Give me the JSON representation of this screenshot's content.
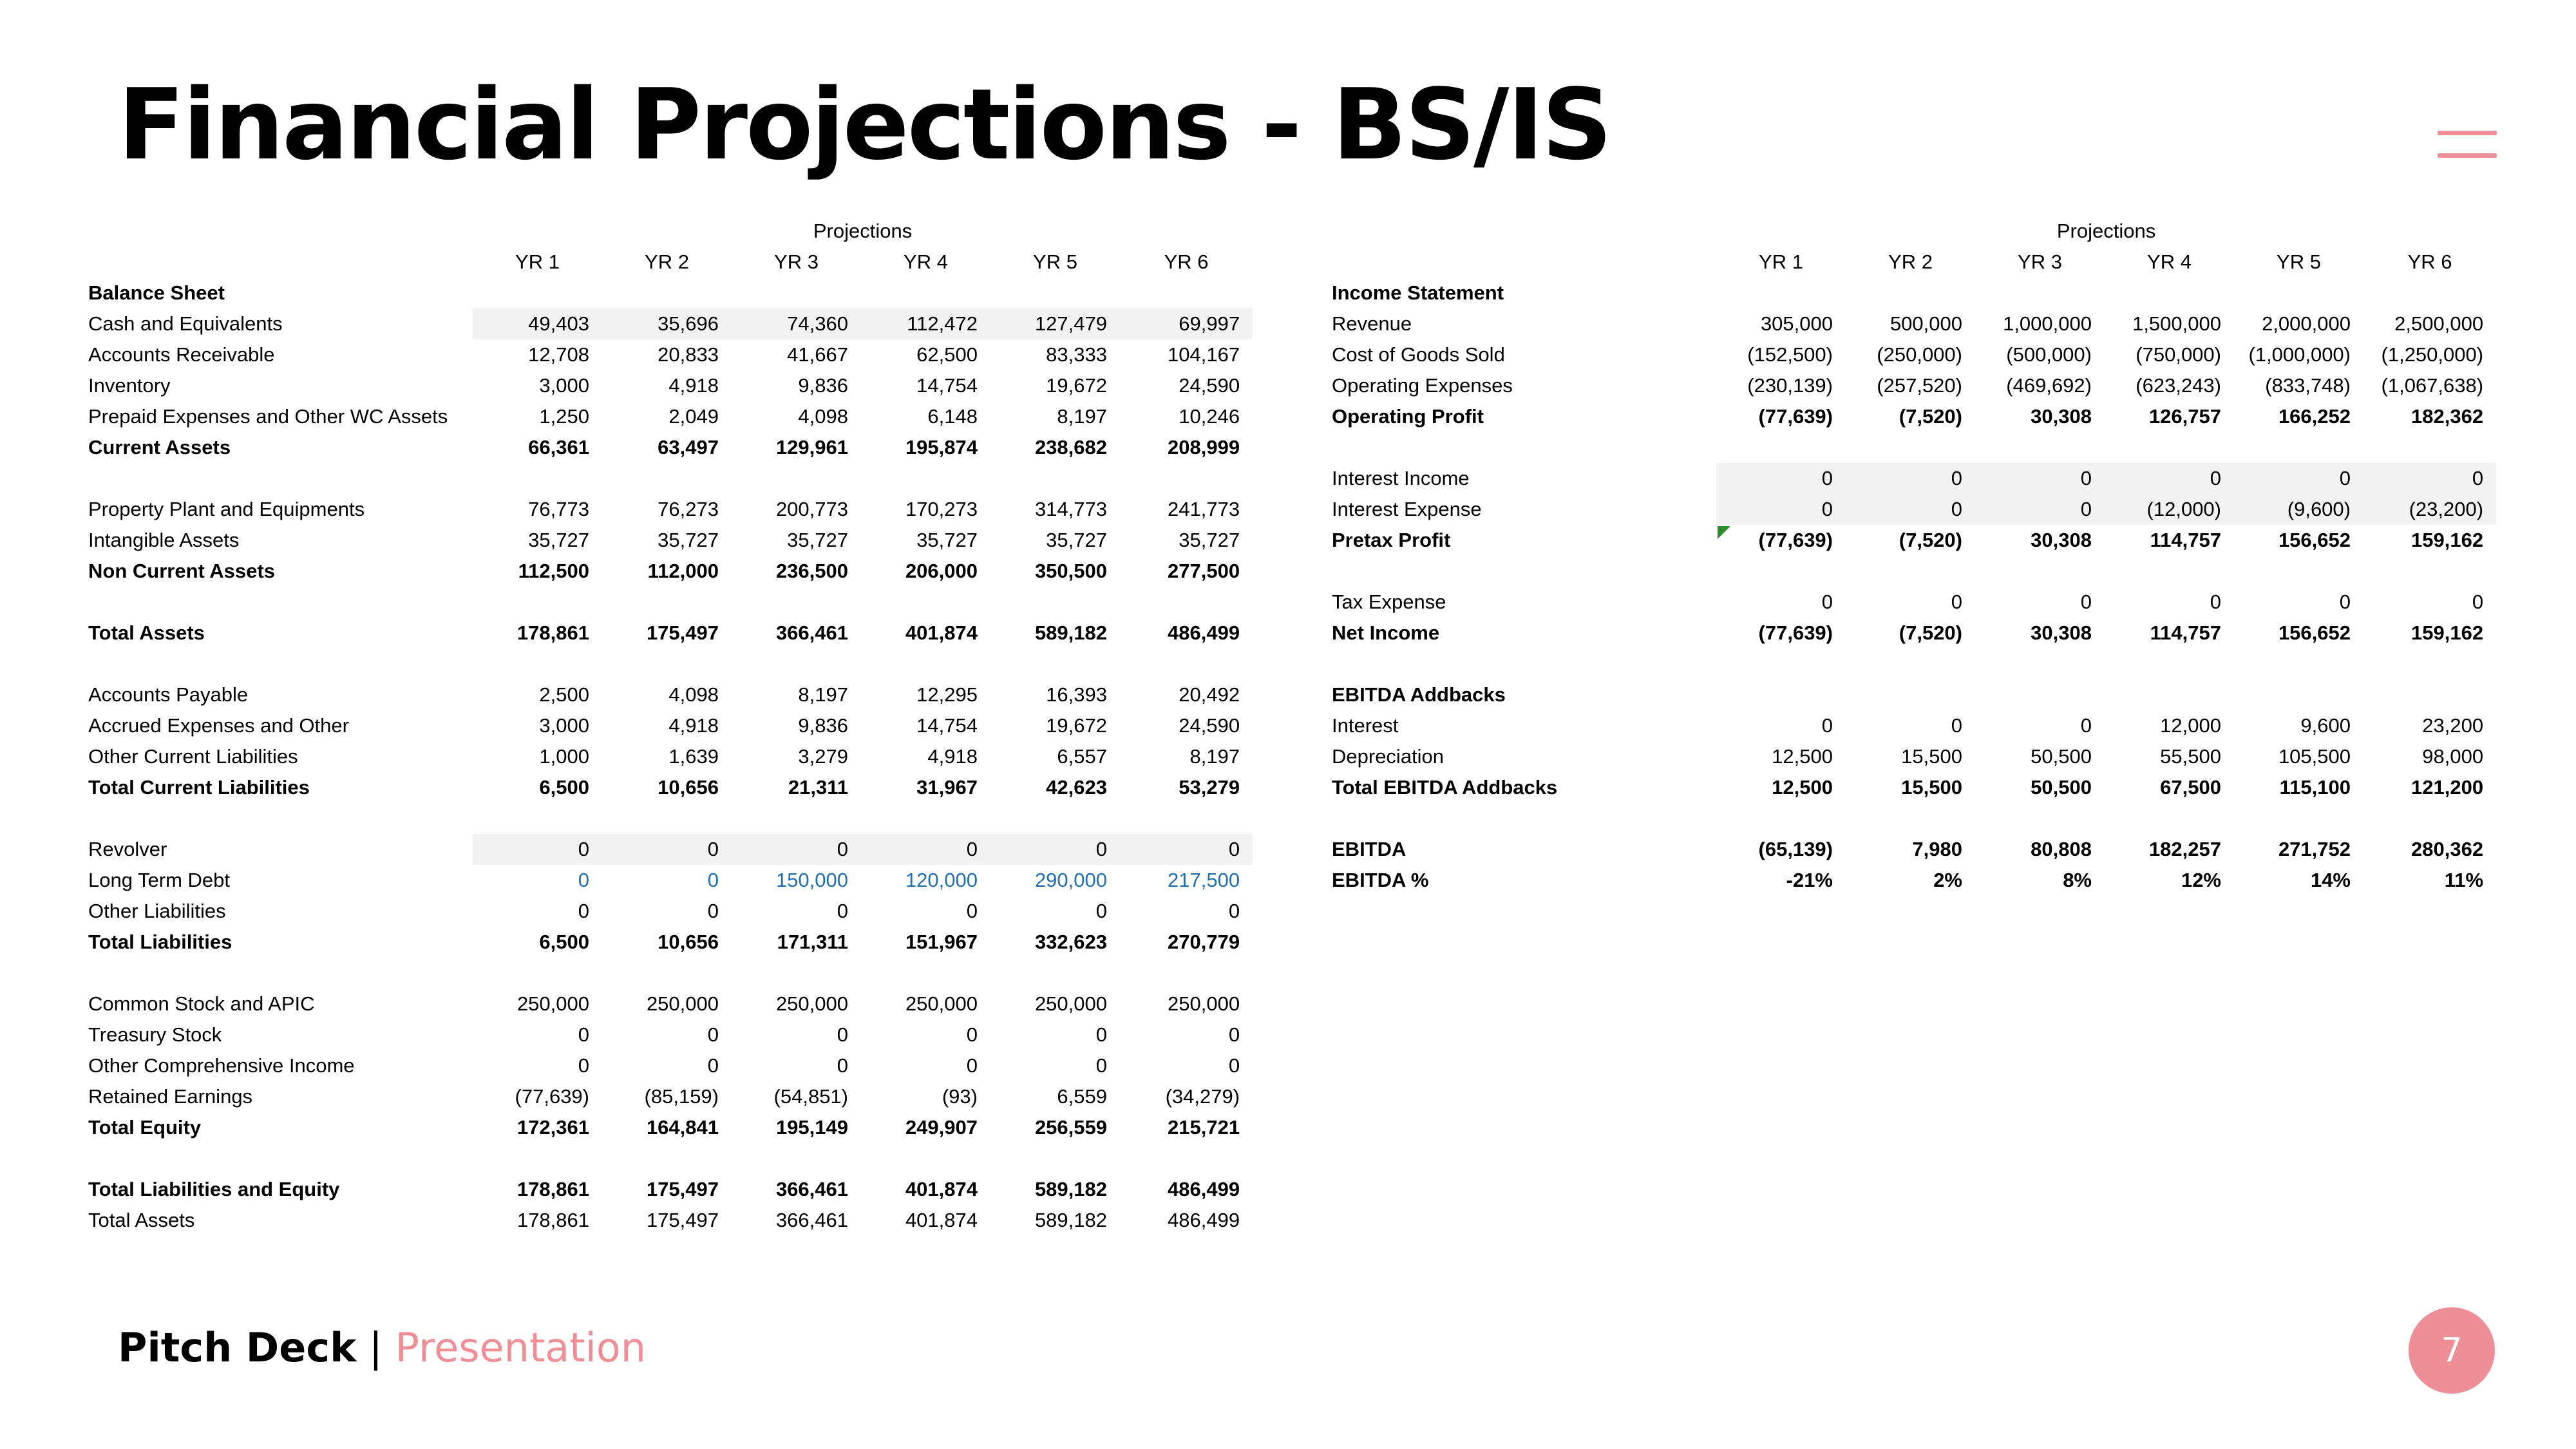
{
  "title": "Financial Projections - BS/IS",
  "colors": {
    "accent": "#ee8f98",
    "link_blue": "#1f6fb4",
    "shade": "#f2f2f2",
    "marker_green": "#2e8b2e"
  },
  "icons": {
    "menu": "hamburger-menu-icon"
  },
  "footer": {
    "brand": "Pitch Deck",
    "separator": "|",
    "subtitle": "Presentation",
    "page_number": "7"
  },
  "balance_sheet": {
    "projections_label": "Projections",
    "years": [
      "YR 1",
      "YR 2",
      "YR 3",
      "YR 4",
      "YR 5",
      "YR 6"
    ],
    "section_title": "Balance Sheet",
    "rows": [
      {
        "label": "Cash and Equivalents",
        "values": [
          "49,403",
          "35,696",
          "74,360",
          "112,472",
          "127,479",
          "69,997"
        ],
        "shaded": true
      },
      {
        "label": "Accounts Receivable",
        "values": [
          "12,708",
          "20,833",
          "41,667",
          "62,500",
          "83,333",
          "104,167"
        ]
      },
      {
        "label": "Inventory",
        "values": [
          "3,000",
          "4,918",
          "9,836",
          "14,754",
          "19,672",
          "24,590"
        ]
      },
      {
        "label": "Prepaid Expenses and Other WC Assets",
        "values": [
          "1,250",
          "2,049",
          "4,098",
          "6,148",
          "8,197",
          "10,246"
        ]
      },
      {
        "label": "Current Assets",
        "values": [
          "66,361",
          "63,497",
          "129,961",
          "195,874",
          "238,682",
          "208,999"
        ],
        "bold": true
      },
      {
        "label": "",
        "values": [
          "",
          "",
          "",
          "",
          "",
          ""
        ]
      },
      {
        "label": "Property Plant and Equipments",
        "values": [
          "76,773",
          "76,273",
          "200,773",
          "170,273",
          "314,773",
          "241,773"
        ]
      },
      {
        "label": "Intangible Assets",
        "values": [
          "35,727",
          "35,727",
          "35,727",
          "35,727",
          "35,727",
          "35,727"
        ]
      },
      {
        "label": "Non Current Assets",
        "values": [
          "112,500",
          "112,000",
          "236,500",
          "206,000",
          "350,500",
          "277,500"
        ],
        "bold": true
      },
      {
        "label": "",
        "values": [
          "",
          "",
          "",
          "",
          "",
          ""
        ]
      },
      {
        "label": "Total Assets",
        "values": [
          "178,861",
          "175,497",
          "366,461",
          "401,874",
          "589,182",
          "486,499"
        ],
        "bold": true
      },
      {
        "label": "",
        "values": [
          "",
          "",
          "",
          "",
          "",
          ""
        ]
      },
      {
        "label": "Accounts Payable",
        "values": [
          "2,500",
          "4,098",
          "8,197",
          "12,295",
          "16,393",
          "20,492"
        ]
      },
      {
        "label": "Accrued Expenses and Other",
        "values": [
          "3,000",
          "4,918",
          "9,836",
          "14,754",
          "19,672",
          "24,590"
        ]
      },
      {
        "label": "Other Current Liabilities",
        "values": [
          "1,000",
          "1,639",
          "3,279",
          "4,918",
          "6,557",
          "8,197"
        ]
      },
      {
        "label": "Total Current Liabilities",
        "values": [
          "6,500",
          "10,656",
          "21,311",
          "31,967",
          "42,623",
          "53,279"
        ],
        "bold": true
      },
      {
        "label": "",
        "values": [
          "",
          "",
          "",
          "",
          "",
          ""
        ]
      },
      {
        "label": "Revolver",
        "values": [
          "0",
          "0",
          "0",
          "0",
          "0",
          "0"
        ],
        "shaded": true
      },
      {
        "label": "Long Term Debt",
        "values": [
          "0",
          "0",
          "150,000",
          "120,000",
          "290,000",
          "217,500"
        ],
        "blue": true
      },
      {
        "label": "Other Liabilities",
        "values": [
          "0",
          "0",
          "0",
          "0",
          "0",
          "0"
        ]
      },
      {
        "label": "Total Liabilities",
        "values": [
          "6,500",
          "10,656",
          "171,311",
          "151,967",
          "332,623",
          "270,779"
        ],
        "bold": true
      },
      {
        "label": "",
        "values": [
          "",
          "",
          "",
          "",
          "",
          ""
        ]
      },
      {
        "label": "Common Stock and APIC",
        "values": [
          "250,000",
          "250,000",
          "250,000",
          "250,000",
          "250,000",
          "250,000"
        ]
      },
      {
        "label": "Treasury Stock",
        "values": [
          "0",
          "0",
          "0",
          "0",
          "0",
          "0"
        ]
      },
      {
        "label": "Other Comprehensive Income",
        "values": [
          "0",
          "0",
          "0",
          "0",
          "0",
          "0"
        ]
      },
      {
        "label": "Retained Earnings",
        "values": [
          "(77,639)",
          "(85,159)",
          "(54,851)",
          "(93)",
          "6,559",
          "(34,279)"
        ]
      },
      {
        "label": "Total Equity",
        "values": [
          "172,361",
          "164,841",
          "195,149",
          "249,907",
          "256,559",
          "215,721"
        ],
        "bold": true
      },
      {
        "label": "",
        "values": [
          "",
          "",
          "",
          "",
          "",
          ""
        ]
      },
      {
        "label": "Total Liabilities and Equity",
        "values": [
          "178,861",
          "175,497",
          "366,461",
          "401,874",
          "589,182",
          "486,499"
        ],
        "bold": true
      },
      {
        "label": "Total Assets",
        "values": [
          "178,861",
          "175,497",
          "366,461",
          "401,874",
          "589,182",
          "486,499"
        ]
      }
    ]
  },
  "income_statement": {
    "projections_label": "Projections",
    "years": [
      "YR 1",
      "YR 2",
      "YR 3",
      "YR 4",
      "YR 5",
      "YR 6"
    ],
    "section_title": "Income Statement",
    "rows": [
      {
        "label": "Revenue",
        "values": [
          "305,000",
          "500,000",
          "1,000,000",
          "1,500,000",
          "2,000,000",
          "2,500,000"
        ]
      },
      {
        "label": "Cost of Goods Sold",
        "values": [
          "(152,500)",
          "(250,000)",
          "(500,000)",
          "(750,000)",
          "(1,000,000)",
          "(1,250,000)"
        ]
      },
      {
        "label": "Operating Expenses",
        "values": [
          "(230,139)",
          "(257,520)",
          "(469,692)",
          "(623,243)",
          "(833,748)",
          "(1,067,638)"
        ]
      },
      {
        "label": "Operating Profit",
        "values": [
          "(77,639)",
          "(7,520)",
          "30,308",
          "126,757",
          "166,252",
          "182,362"
        ],
        "bold": true
      },
      {
        "label": "",
        "values": [
          "",
          "",
          "",
          "",
          "",
          ""
        ]
      },
      {
        "label": "Interest Income",
        "values": [
          "0",
          "0",
          "0",
          "0",
          "0",
          "0"
        ],
        "shaded": true
      },
      {
        "label": "Interest Expense",
        "values": [
          "0",
          "0",
          "0",
          "(12,000)",
          "(9,600)",
          "(23,200)"
        ],
        "shaded": true
      },
      {
        "label": "Pretax Profit",
        "values": [
          "(77,639)",
          "(7,520)",
          "30,308",
          "114,757",
          "156,652",
          "159,162"
        ],
        "bold": true
      },
      {
        "label": "",
        "values": [
          "",
          "",
          "",
          "",
          "",
          ""
        ]
      },
      {
        "label": "Tax Expense",
        "values": [
          "0",
          "0",
          "0",
          "0",
          "0",
          "0"
        ]
      },
      {
        "label": "Net Income",
        "values": [
          "(77,639)",
          "(7,520)",
          "30,308",
          "114,757",
          "156,652",
          "159,162"
        ],
        "bold": true
      },
      {
        "label": "",
        "values": [
          "",
          "",
          "",
          "",
          "",
          ""
        ]
      },
      {
        "label": "EBITDA Addbacks",
        "values": [
          "",
          "",
          "",
          "",
          "",
          ""
        ],
        "bold": true
      },
      {
        "label": "Interest",
        "values": [
          "0",
          "0",
          "0",
          "12,000",
          "9,600",
          "23,200"
        ]
      },
      {
        "label": "Depreciation",
        "values": [
          "12,500",
          "15,500",
          "50,500",
          "55,500",
          "105,500",
          "98,000"
        ]
      },
      {
        "label": "Total EBITDA Addbacks",
        "values": [
          "12,500",
          "15,500",
          "50,500",
          "67,500",
          "115,100",
          "121,200"
        ],
        "bold": true
      },
      {
        "label": "",
        "values": [
          "",
          "",
          "",
          "",
          "",
          ""
        ]
      },
      {
        "label": "EBITDA",
        "values": [
          "(65,139)",
          "7,980",
          "80,808",
          "182,257",
          "271,752",
          "280,362"
        ],
        "bold": true
      },
      {
        "label": "EBITDA %",
        "values": [
          "-21%",
          "2%",
          "8%",
          "12%",
          "14%",
          "11%"
        ],
        "bold": true
      }
    ]
  }
}
